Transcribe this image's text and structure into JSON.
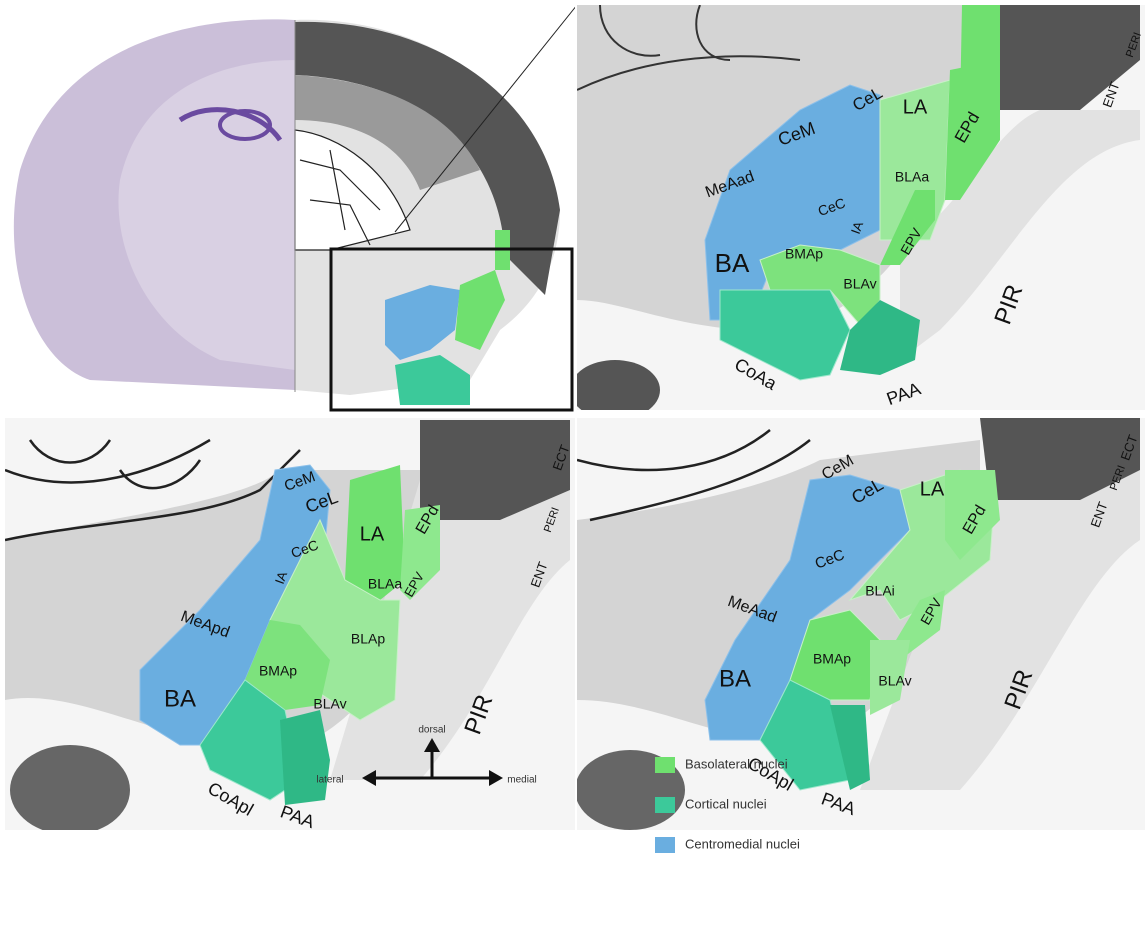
{
  "panels": [
    {
      "labels": [
        "CeL",
        "LA",
        "EPd",
        "CeM",
        "MeAad",
        "BLAa",
        "CeC",
        "IA",
        "EPV",
        "BA",
        "BMAp",
        "BLAv",
        "PIR",
        "CoAa",
        "PAA",
        "ENT",
        "PERI"
      ]
    },
    {
      "labels": [
        "CeM",
        "CeL",
        "LA",
        "EPd",
        "CeC",
        "IA",
        "MeApd",
        "BLAa",
        "EPV",
        "BLAp",
        "BMAp",
        "BLAv",
        "BA",
        "PIR",
        "CoApl",
        "PAA",
        "ENT",
        "PERI",
        "ECT"
      ]
    },
    {
      "labels": [
        "CeM",
        "CeL",
        "LA",
        "EPd",
        "CeC",
        "MeAad",
        "BLAi",
        "EPV",
        "BMAp",
        "BA",
        "BLAv",
        "PIR",
        "CoApl",
        "PAA",
        "ENT",
        "PERI",
        "ECT"
      ]
    }
  ],
  "compass": {
    "up": "dorsal",
    "left": "lateral",
    "right": "medial"
  },
  "legend": [
    {
      "label": "Basolateral nuclei",
      "color": "#6fe06f"
    },
    {
      "label": "Cortical nuclei",
      "color": "#3cc99a"
    },
    {
      "label": "Centromedial nuclei",
      "color": "#6aaee0"
    }
  ]
}
